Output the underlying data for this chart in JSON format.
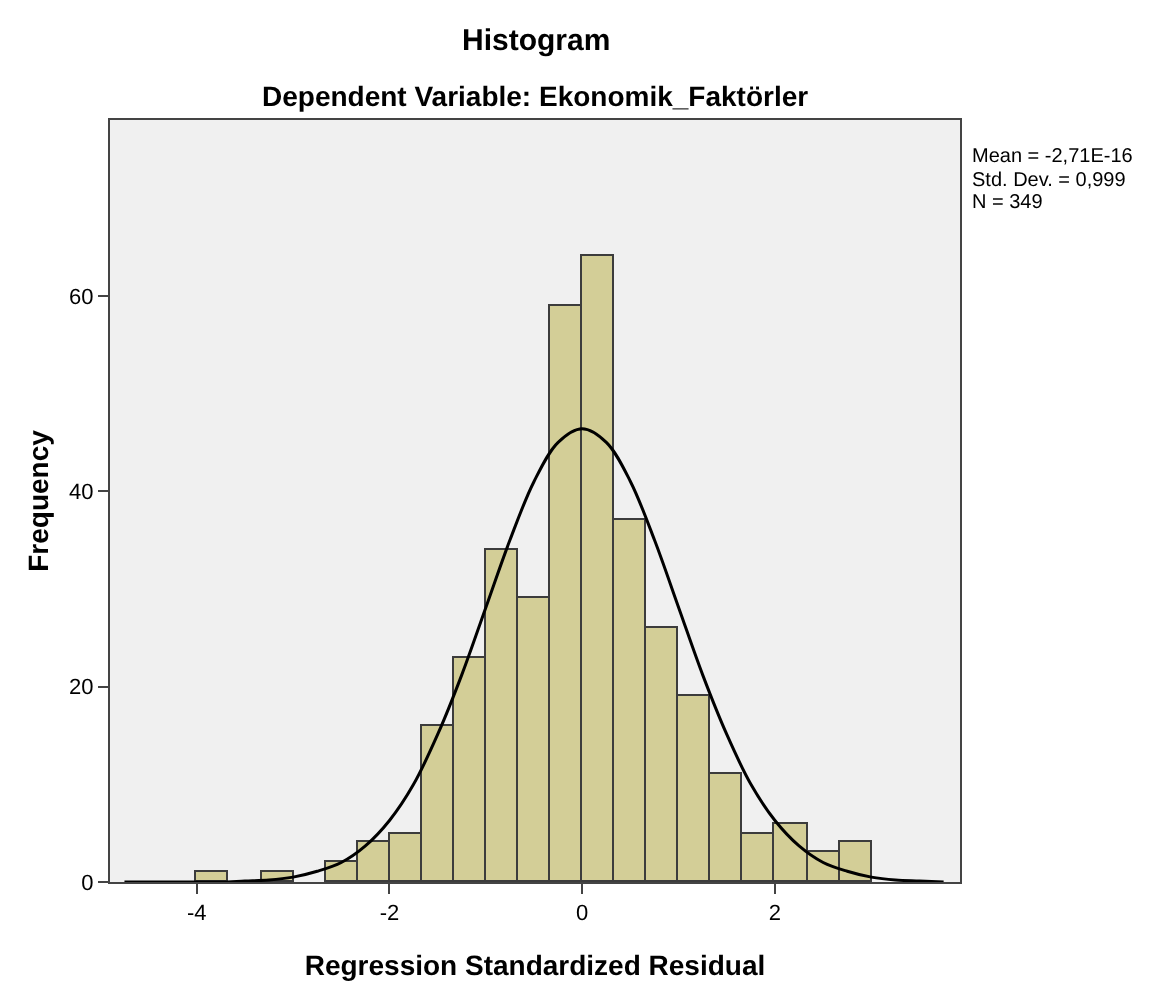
{
  "chart_data": {
    "type": "histogram",
    "title": "Histogram",
    "subtitle": "Dependent Variable: Ekonomik_Faktörler",
    "xlabel": "Regression Standardized Residual",
    "ylabel": "Frequency",
    "bins": [
      -4,
      -3.667,
      -3.333,
      -3,
      -2.667,
      -2.333,
      -2,
      -1.667,
      -1.333,
      -1,
      -0.667,
      -0.333,
      0,
      0.333,
      0.667,
      1,
      1.333,
      1.667,
      2,
      2.333,
      2.667,
      3
    ],
    "values": [
      1,
      0,
      1,
      0,
      2,
      4,
      5,
      16,
      23,
      34,
      29,
      59,
      64,
      37,
      26,
      19,
      11,
      5,
      6,
      3,
      4
    ],
    "color": "#d3ce97",
    "series": [
      {
        "type": "line",
        "color": "#000000",
        "x": [
          -4.75,
          -4.5,
          -4.25,
          -4,
          -3.75,
          -3.5,
          -3.25,
          -3,
          -2.75,
          -2.5,
          -2.25,
          -2,
          -1.75,
          -1.5,
          -1.25,
          -1,
          -0.75,
          -0.5,
          -0.25,
          0,
          0.25,
          0.5,
          0.75,
          1,
          1.25,
          1.5,
          1.75,
          2,
          2.25,
          2.5,
          2.75,
          3,
          3.25,
          3.5,
          3.75
        ],
        "values": [
          0,
          0,
          0,
          0,
          0,
          0.1,
          0.2,
          0.5,
          1.1,
          2,
          3.7,
          6.3,
          10,
          15.1,
          21.2,
          28.1,
          35,
          41,
          45,
          46.4,
          45,
          41,
          35,
          28.1,
          21.2,
          15.1,
          10,
          6.3,
          3.7,
          2,
          1.1,
          0.5,
          0.2,
          0.1,
          0
        ]
      }
    ],
    "xlim": [
      -4.9,
      3.92
    ],
    "ylim": [
      0,
      78
    ],
    "xticks": [
      -4,
      -2,
      0,
      2
    ],
    "yticks": [
      0,
      20,
      40,
      60
    ],
    "annotations": [
      "Mean = -2,71E-16",
      "Std. Dev. = 0,999",
      "N = 349"
    ],
    "grid": false
  }
}
